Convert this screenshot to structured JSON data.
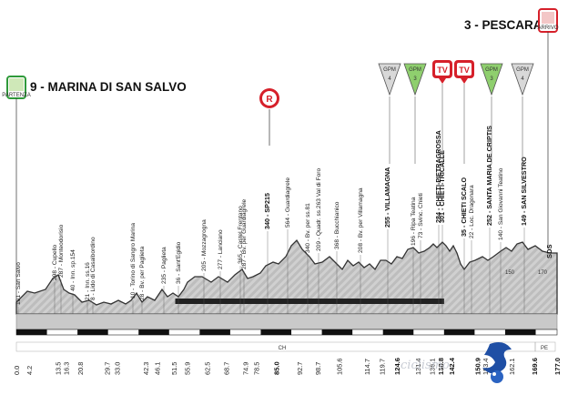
{
  "start": {
    "label": "9 - MARINA DI SAN SALVO",
    "icon": "start-flag-icon",
    "icon_text": "PARTENZA"
  },
  "finish": {
    "label": "3 - PESCARA",
    "icon": "finish-flag-icon",
    "icon_text": "ARRIVO"
  },
  "gpm": [
    {
      "label": "GPM",
      "cat": "4",
      "color": "#d8d8d8"
    },
    {
      "label": "GPM",
      "cat": "3",
      "color": "#8fcf6e"
    },
    {
      "label": "GPM",
      "cat": "3",
      "color": "#8fcf6e"
    },
    {
      "label": "GPM",
      "cat": "4",
      "color": "#d8d8d8"
    }
  ],
  "tv": [
    "TV",
    "TV"
  ],
  "r_marker": "R",
  "locations": [
    {
      "text": "101 - San Salvo",
      "km": "0.0",
      "bold": false
    },
    {
      "text": "298 - Cupello",
      "km": "",
      "bold": false
    },
    {
      "text": "287 - Monteodorisio",
      "km": "",
      "bold": false
    },
    {
      "text": "40 - Inn. sp.154",
      "km": "13.5",
      "bold": false
    },
    {
      "text": "21 - Inn. ss.16",
      "km": "16.3",
      "bold": false
    },
    {
      "text": "8 - Lido di Casalbordino",
      "km": "20.8",
      "bold": false
    },
    {
      "text": "10 - Torino di Sangro Marina",
      "km": "29.7",
      "bold": false
    },
    {
      "text": "28 - Bv. per Paglieta",
      "km": "33.0",
      "bold": false
    },
    {
      "text": "235 - Paglieta",
      "km": "42.3",
      "bold": false
    },
    {
      "text": "36 - Sant'Egidio",
      "km": "46.1",
      "bold": false
    },
    {
      "text": "205 - Mozzagrogna",
      "km": "51.5",
      "bold": false
    },
    {
      "text": "277 - Lanciano",
      "km": "55.9",
      "bold": false
    },
    {
      "text": "365 - Castel Frentano",
      "km": "62.5",
      "bold": false
    },
    {
      "text": "287 - Bv. per Guardiagrele",
      "km": "68.7",
      "bold": false
    },
    {
      "text": "340 - SP215",
      "km": "74.9",
      "bold": true
    },
    {
      "text": "564 - Guardiagrele",
      "km": "78.5",
      "bold": false
    },
    {
      "text": "340 - Bv. per ss.81",
      "km": "85.0",
      "bold": false
    },
    {
      "text": "209 - Quadr. ss.263 Val di Foro",
      "km": "92.7",
      "bold": false
    },
    {
      "text": "368 - Bucchianico",
      "km": "98.7",
      "bold": false
    },
    {
      "text": "208 - Bv. per Villamagna",
      "km": "105.6",
      "bold": false
    },
    {
      "text": "255 - VILLAMAGNA",
      "km": "114.7",
      "bold": true
    },
    {
      "text": "196 - Ripa Teatina",
      "km": "119.7",
      "bold": false
    },
    {
      "text": "73 - Svinc. Chieti",
      "km": "124.6",
      "bold": false
    },
    {
      "text": "284 - CHIETI-PIETRAGROSSA",
      "km": "131.4",
      "bold": true
    },
    {
      "text": "301 - CHIETI-TRICALLE",
      "km": "136.1",
      "bold": true
    },
    {
      "text": "35 - CHIETI SCALO",
      "km": "138.8",
      "bold": true
    },
    {
      "text": "22 - Loc. Dragonara",
      "km": "142.4",
      "bold": false
    },
    {
      "text": "252 - SANTA MARIA DE CRIPTIS",
      "km": "150.9",
      "bold": true
    },
    {
      "text": "140 - San Giovanni Teatino",
      "km": "153.4",
      "bold": false
    },
    {
      "text": "149 - SAN SILVESTRO",
      "km": "157.3",
      "bold": true
    },
    {
      "text": "",
      "km": "162.1",
      "bold": false
    },
    {
      "text": "",
      "km": "169.6",
      "bold": false
    },
    {
      "text": "",
      "km": "177.0",
      "bold": false
    }
  ],
  "km_extra": [
    "4.2",
    "13.5",
    "16.3",
    "20.8",
    "29.7",
    "33.0",
    "42.3",
    "46.1",
    "51.5",
    "55.9",
    "62.5",
    "68.7",
    "74.9",
    "78.5",
    "85.0",
    "92.7",
    "98.7",
    "105.6",
    "114.7",
    "119.7",
    "124.6",
    "131.4",
    "136.1",
    "138.8",
    "142.4",
    "150.9",
    "153.4",
    "157.3",
    "162.1",
    "169.6",
    "177.0"
  ],
  "scale_marks": [
    "170",
    "150"
  ],
  "scale_end": "SDS",
  "province_labels": [
    "CH",
    "PE"
  ],
  "watermark": "ciclismo"
}
